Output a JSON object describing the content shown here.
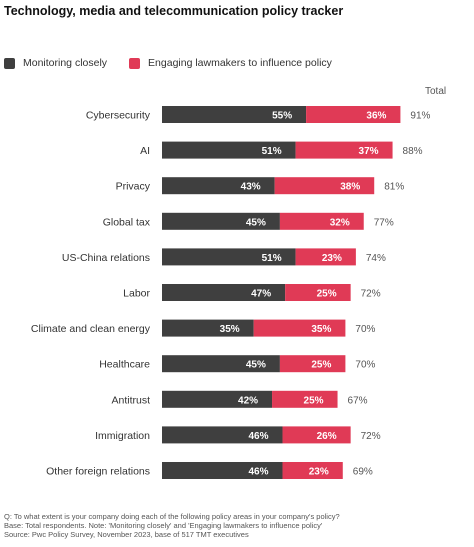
{
  "title": "Technology, media and telecommunication policy tracker",
  "legend": {
    "monitoring": {
      "label": "Monitoring closely",
      "color": "#3f3f3f"
    },
    "engaging": {
      "label": "Engaging lawmakers to influence policy",
      "color": "#e03a56"
    }
  },
  "total_label": "Total",
  "chart_data": {
    "type": "bar",
    "stacked": true,
    "orientation": "horizontal",
    "categories": [
      "Cybersecurity",
      "AI",
      "Privacy",
      "Global tax",
      "US-China relations",
      "Labor",
      "Climate and clean energy",
      "Healthcare",
      "Antitrust",
      "Immigration",
      "Other foreign relations"
    ],
    "series": [
      {
        "name": "Monitoring closely",
        "color": "#3f3f3f",
        "values": [
          55,
          51,
          43,
          45,
          51,
          47,
          35,
          45,
          42,
          46,
          46
        ]
      },
      {
        "name": "Engaging lawmakers to influence policy",
        "color": "#e03a56",
        "values": [
          36,
          37,
          38,
          32,
          23,
          25,
          35,
          25,
          25,
          26,
          23
        ]
      }
    ],
    "totals": [
      "91%",
      "88%",
      "81%",
      "77%",
      "74%",
      "72%",
      "70%",
      "70%",
      "67%",
      "72%",
      "69%"
    ],
    "xlim": [
      0,
      100
    ]
  },
  "footnote": [
    "Q: To what extent is your company doing each of the following policy areas in your company's policy?",
    "Base: Total respondents. Note: 'Monitoring closely' and 'Engaging lawmakers to influence policy'",
    "Source: Pwc Policy Survey, November 2023, base of 517 TMT executives"
  ]
}
